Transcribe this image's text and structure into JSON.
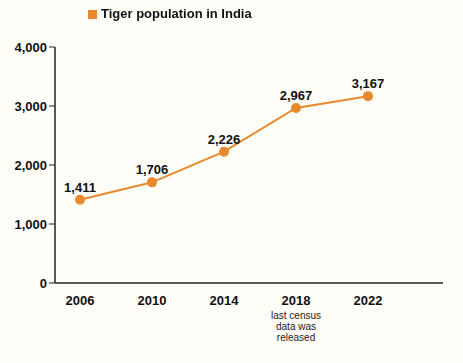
{
  "chart_data": {
    "type": "line",
    "categories": [
      "2006",
      "2010",
      "2014",
      "2018",
      "2022"
    ],
    "series": [
      {
        "name": "Tiger population in India",
        "color": "#e8892b",
        "values": [
          1411,
          1706,
          2226,
          2967,
          3167
        ],
        "value_labels": [
          "1,411",
          "1,706",
          "2,226",
          "2,967",
          "3,167"
        ],
        "marker": "circle"
      }
    ],
    "ylim": [
      0,
      4000
    ],
    "yticks": [
      0,
      {
        "value": 1000,
        "label": "1,000"
      },
      {
        "value": 2000,
        "label": "2,000"
      },
      {
        "value": 3000,
        "label": "3,000"
      },
      {
        "value": 4000,
        "label": "4,000"
      }
    ],
    "annotation": {
      "text": "last census data was released",
      "category": "2018"
    },
    "data_labels": true,
    "legend": "top-left",
    "grid": false
  }
}
